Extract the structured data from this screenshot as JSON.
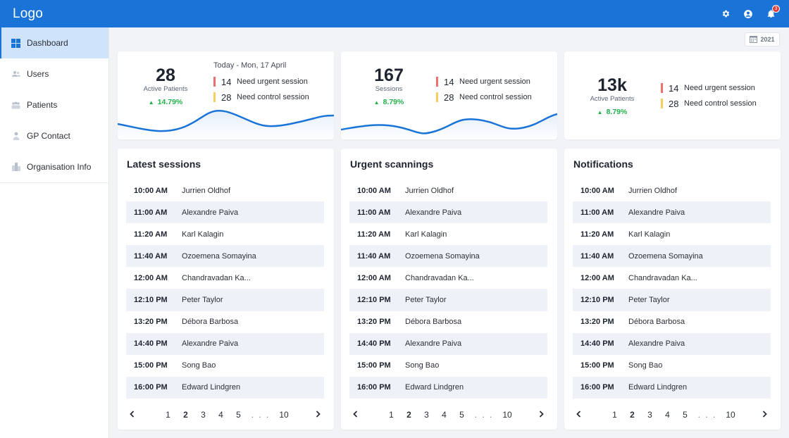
{
  "app": {
    "logo": "Logo",
    "notification_count": "3"
  },
  "sidebar": {
    "items": [
      {
        "label": "Dashboard",
        "icon": "grid-icon"
      },
      {
        "label": "Users",
        "icon": "users-icon"
      },
      {
        "label": "Patients",
        "icon": "patients-icon"
      },
      {
        "label": "GP Contact",
        "icon": "person-icon"
      },
      {
        "label": "Organisation Info",
        "icon": "building-icon"
      }
    ]
  },
  "year_filter": "2021",
  "stats": [
    {
      "value": "28",
      "label": "Active Patients",
      "delta": "14.79%",
      "date": "Today - Mon, 17 April",
      "urgent_value": "14",
      "urgent_label": "Need urgent session",
      "control_value": "28",
      "control_label": "Need control session"
    },
    {
      "value": "167",
      "label": "Sessions",
      "delta": "8.79%",
      "urgent_value": "14",
      "urgent_label": "Need urgent session",
      "control_value": "28",
      "control_label": "Need control session"
    },
    {
      "value": "13k",
      "label": "Active Patients",
      "delta": "8.79%",
      "urgent_value": "14",
      "urgent_label": "Need urgent session",
      "control_value": "28",
      "control_label": "Need control session"
    }
  ],
  "lists": [
    {
      "title": "Latest sessions",
      "rows": [
        {
          "time": "10:00 AM",
          "name": "Jurrien Oldhof"
        },
        {
          "time": "11:00 AM",
          "name": "Alexandre Paiva"
        },
        {
          "time": "11:20 AM",
          "name": "Karl Kalagin"
        },
        {
          "time": "11:40 AM",
          "name": "Ozoemena Somayina"
        },
        {
          "time": "12:00 AM",
          "name": "Chandravadan Ka..."
        },
        {
          "time": "12:10 PM",
          "name": "Peter Taylor"
        },
        {
          "time": "13:20 PM",
          "name": "Débora Barbosa"
        },
        {
          "time": "14:40 PM",
          "name": "Alexandre Paiva"
        },
        {
          "time": "15:00 PM",
          "name": "Song Bao"
        },
        {
          "time": "16:00 PM",
          "name": "Edward Lindgren"
        }
      ],
      "pages": [
        "1",
        "2",
        "3",
        "4",
        "5"
      ],
      "ellipsis": ". . .",
      "last_page": "10",
      "current_page": "2"
    },
    {
      "title": "Urgent scannings",
      "rows": [
        {
          "time": "10:00 AM",
          "name": "Jurrien Oldhof"
        },
        {
          "time": "11:00 AM",
          "name": "Alexandre Paiva"
        },
        {
          "time": "11:20 AM",
          "name": "Karl Kalagin"
        },
        {
          "time": "11:40 AM",
          "name": "Ozoemena Somayina"
        },
        {
          "time": "12:00 AM",
          "name": "Chandravadan Ka..."
        },
        {
          "time": "12:10 PM",
          "name": "Peter Taylor"
        },
        {
          "time": "13:20 PM",
          "name": "Débora Barbosa"
        },
        {
          "time": "14:40 PM",
          "name": "Alexandre Paiva"
        },
        {
          "time": "15:00 PM",
          "name": "Song Bao"
        },
        {
          "time": "16:00 PM",
          "name": "Edward Lindgren"
        }
      ],
      "pages": [
        "1",
        "2",
        "3",
        "4",
        "5"
      ],
      "ellipsis": ". . .",
      "last_page": "10",
      "current_page": "2"
    },
    {
      "title": "Notifications",
      "rows": [
        {
          "time": "10:00 AM",
          "name": "Jurrien Oldhof"
        },
        {
          "time": "11:00 AM",
          "name": "Alexandre Paiva"
        },
        {
          "time": "11:20 AM",
          "name": "Karl Kalagin"
        },
        {
          "time": "11:40 AM",
          "name": "Ozoemena Somayina"
        },
        {
          "time": "12:00 AM",
          "name": "Chandravadan Ka..."
        },
        {
          "time": "12:10 PM",
          "name": "Peter Taylor"
        },
        {
          "time": "13:20 PM",
          "name": "Débora Barbosa"
        },
        {
          "time": "14:40 PM",
          "name": "Alexandre Paiva"
        },
        {
          "time": "15:00 PM",
          "name": "Song Bao"
        },
        {
          "time": "16:00 PM",
          "name": "Edward Lindgren"
        }
      ],
      "pages": [
        "1",
        "2",
        "3",
        "4",
        "5"
      ],
      "ellipsis": ". . .",
      "last_page": "10",
      "current_page": "2"
    }
  ],
  "colors": {
    "brand": "#1a74d8",
    "urgent": "#ef6f6f",
    "control": "#f7cf5c",
    "positive": "#22b04b",
    "active_nav": "#cfe3fb"
  }
}
